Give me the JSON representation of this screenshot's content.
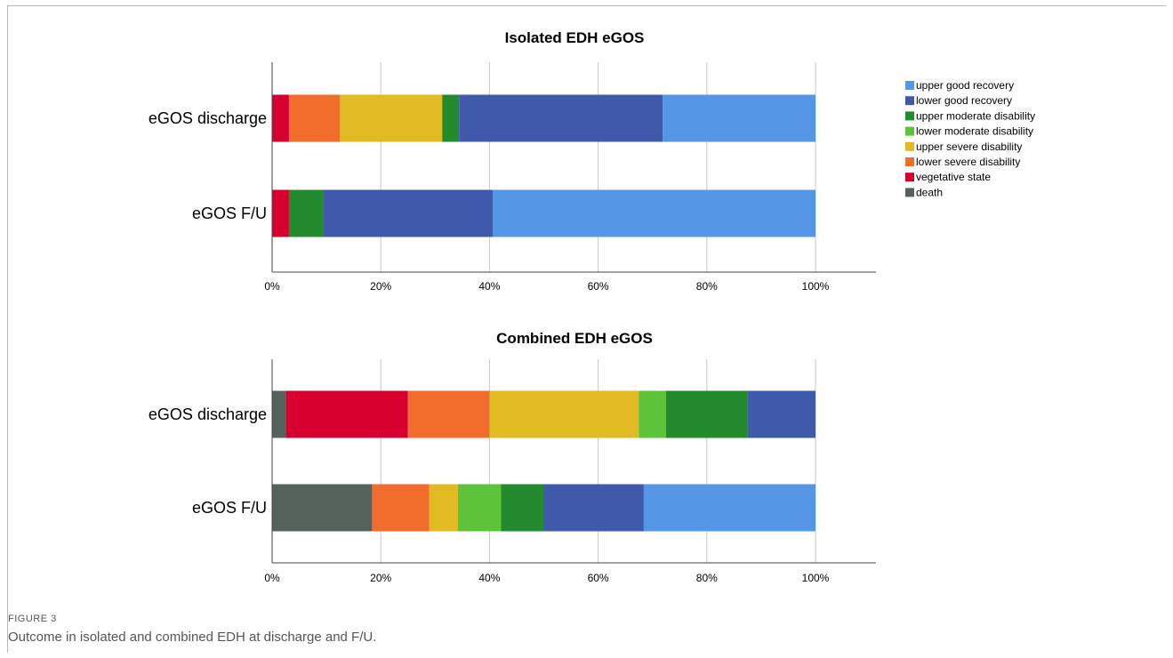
{
  "caption": {
    "label": "FIGURE 3",
    "text": "Outcome in isolated and combined EDH at discharge and F/U."
  },
  "legend": {
    "placement": "top-right",
    "items": [
      {
        "name": "upper good recovery",
        "color": "#5597e6"
      },
      {
        "name": "lower good recovery",
        "color": "#3f5aab"
      },
      {
        "name": "upper moderate disability",
        "color": "#238a2e"
      },
      {
        "name": "lower moderate disability",
        "color": "#5dc43a"
      },
      {
        "name": "upper severe disability",
        "color": "#e2bb22"
      },
      {
        "name": "lower severe disability",
        "color": "#f26d2c"
      },
      {
        "name": "vegetative state",
        "color": "#d6002f"
      },
      {
        "name": "death",
        "color": "#56635c"
      }
    ]
  },
  "chart_data": [
    {
      "type": "bar",
      "orientation": "horizontal",
      "stacked": true,
      "title": "Isolated EDH eGOS",
      "categories": [
        "eGOS discharge",
        "eGOS F/U"
      ],
      "xlim": [
        0,
        110
      ],
      "x_ticks": [
        "0%",
        "20%",
        "40%",
        "60%",
        "80%",
        "100%"
      ],
      "grid": true,
      "series": [
        {
          "name": "death",
          "color": "#56635c",
          "values": [
            0,
            0
          ]
        },
        {
          "name": "vegetative state",
          "color": "#d6002f",
          "values": [
            3.1,
            3.1
          ]
        },
        {
          "name": "lower severe disability",
          "color": "#f26d2c",
          "values": [
            9.4,
            0
          ]
        },
        {
          "name": "upper severe disability",
          "color": "#e2bb22",
          "values": [
            18.8,
            0
          ]
        },
        {
          "name": "lower moderate disability",
          "color": "#5dc43a",
          "values": [
            0,
            0
          ]
        },
        {
          "name": "upper moderate disability",
          "color": "#238a2e",
          "values": [
            3.1,
            6.3
          ]
        },
        {
          "name": "lower good recovery",
          "color": "#3f5aab",
          "values": [
            37.5,
            31.2
          ]
        },
        {
          "name": "upper good recovery",
          "color": "#5597e6",
          "values": [
            28.1,
            59.4
          ]
        }
      ]
    },
    {
      "type": "bar",
      "orientation": "horizontal",
      "stacked": true,
      "title": "Combined EDH eGOS",
      "categories": [
        "eGOS discharge",
        "eGOS F/U"
      ],
      "xlim": [
        0,
        110
      ],
      "x_ticks": [
        "0%",
        "20%",
        "40%",
        "60%",
        "80%",
        "100%"
      ],
      "grid": true,
      "series": [
        {
          "name": "death",
          "color": "#56635c",
          "values": [
            2.5,
            18.4
          ]
        },
        {
          "name": "vegetative state",
          "color": "#d6002f",
          "values": [
            22.5,
            0
          ]
        },
        {
          "name": "lower severe disability",
          "color": "#f26d2c",
          "values": [
            15.0,
            10.5
          ]
        },
        {
          "name": "upper severe disability",
          "color": "#e2bb22",
          "values": [
            27.5,
            5.3
          ]
        },
        {
          "name": "lower moderate disability",
          "color": "#5dc43a",
          "values": [
            5.0,
            7.9
          ]
        },
        {
          "name": "upper moderate disability",
          "color": "#238a2e",
          "values": [
            15.0,
            7.9
          ]
        },
        {
          "name": "lower good recovery",
          "color": "#3f5aab",
          "values": [
            12.5,
            18.4
          ]
        },
        {
          "name": "upper good recovery",
          "color": "#5597e6",
          "values": [
            0,
            31.6
          ]
        }
      ]
    }
  ]
}
